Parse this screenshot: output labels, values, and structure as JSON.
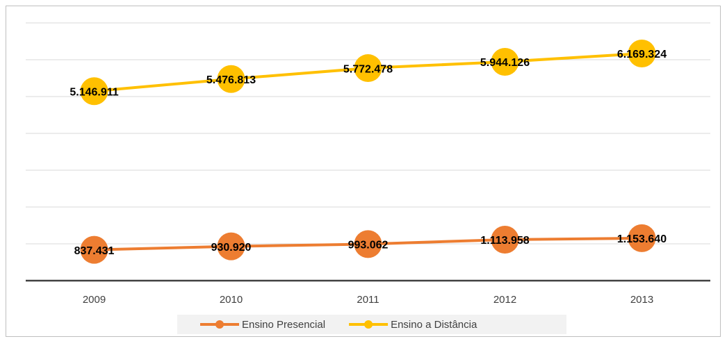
{
  "chart_data": {
    "type": "line",
    "categories": [
      "2009",
      "2010",
      "2011",
      "2012",
      "2013"
    ],
    "series": [
      {
        "name": "Ensino Presencial",
        "color": "#ed7d31",
        "values": [
          837431,
          930920,
          993062,
          1113958,
          1153640
        ],
        "value_labels": [
          "837.431",
          "930.920",
          "993.062",
          "1.113.958",
          "1.153.640"
        ]
      },
      {
        "name": "Ensino a Distância",
        "color": "#ffc000",
        "values": [
          5146911,
          5476813,
          5772478,
          5944126,
          6169324
        ],
        "value_labels": [
          "5.146.911",
          "5.476.813",
          "5.772.478",
          "5.944.126",
          "6.169.324"
        ]
      }
    ],
    "ylim": [
      0,
      7000000
    ],
    "yticks": [
      0,
      1000000,
      2000000,
      3000000,
      4000000,
      5000000,
      6000000,
      7000000
    ],
    "grid": true,
    "legend": "bottom"
  }
}
